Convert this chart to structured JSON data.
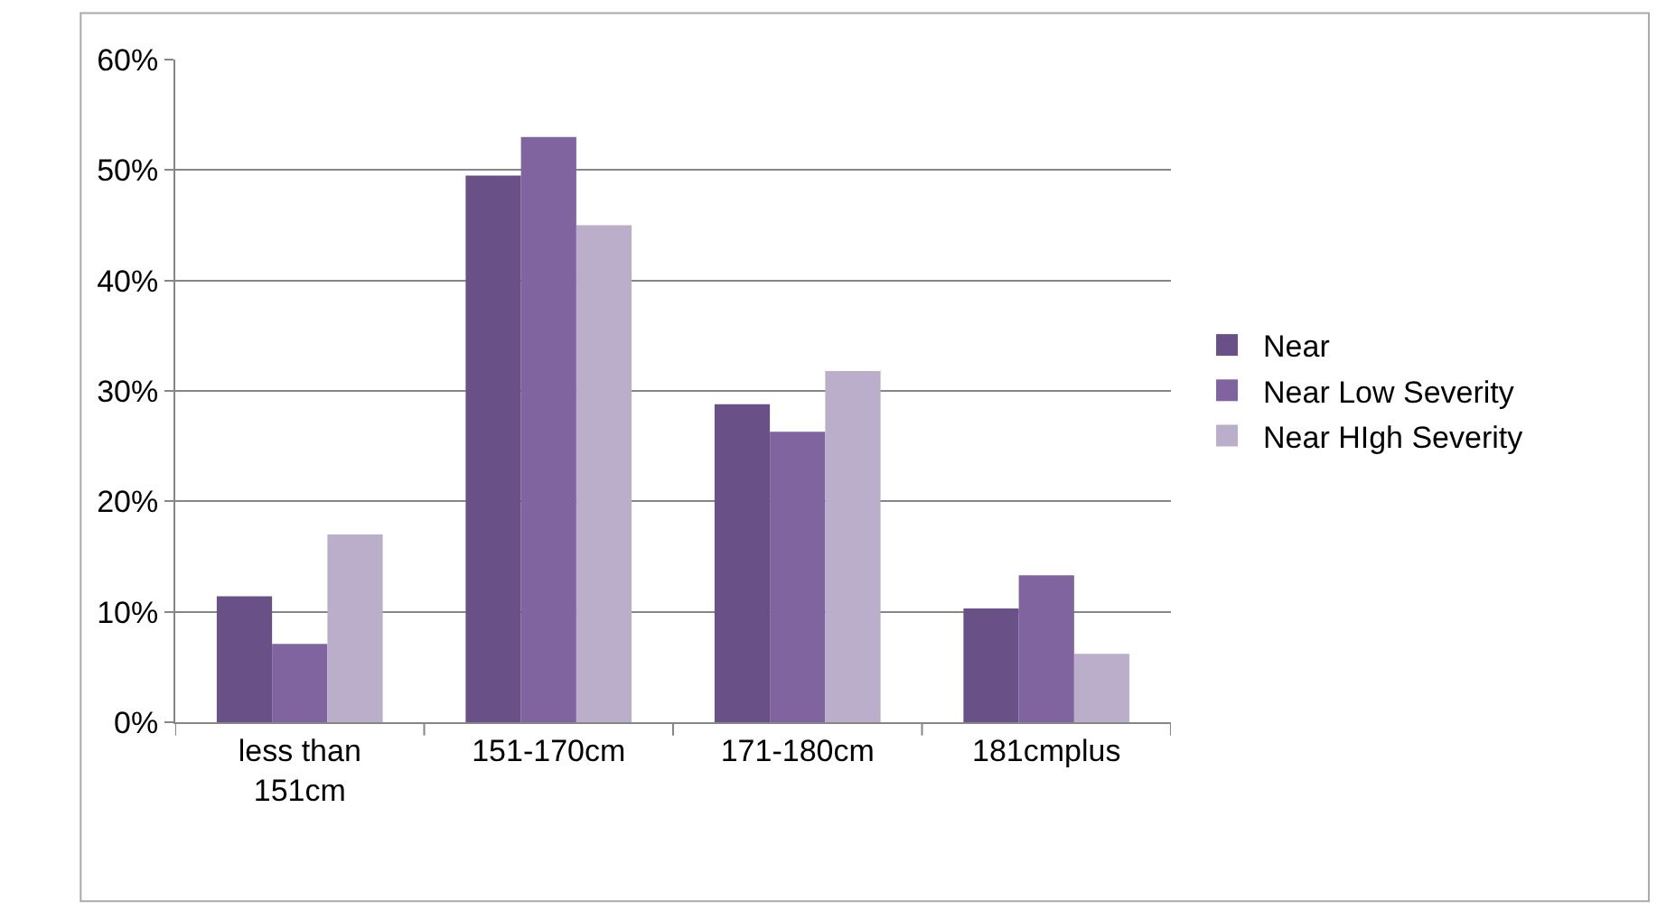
{
  "chart_data": {
    "type": "bar",
    "categories": [
      "less than 151cm",
      "151-170cm",
      "171-180cm",
      "181cmplus"
    ],
    "series": [
      {
        "name": "Near",
        "color": "#695086",
        "values": [
          11.4,
          49.5,
          28.8,
          10.3
        ]
      },
      {
        "name": "Near Low Severity",
        "color": "#8064a0",
        "values": [
          7.1,
          53.0,
          26.3,
          13.3
        ]
      },
      {
        "name": "Near HIgh Severity",
        "color": "#baaeca",
        "values": [
          17.0,
          45.0,
          31.8,
          6.2
        ]
      }
    ],
    "ylim": [
      0,
      60
    ],
    "yticks": [
      {
        "value": 0,
        "label": "0%"
      },
      {
        "value": 10,
        "label": "10%"
      },
      {
        "value": 20,
        "label": "20%"
      },
      {
        "value": 30,
        "label": "30%"
      },
      {
        "value": 40,
        "label": "40%"
      },
      {
        "value": 50,
        "label": "50%"
      },
      {
        "value": 60,
        "label": "60%"
      }
    ],
    "grid": "y",
    "legend": "right"
  }
}
